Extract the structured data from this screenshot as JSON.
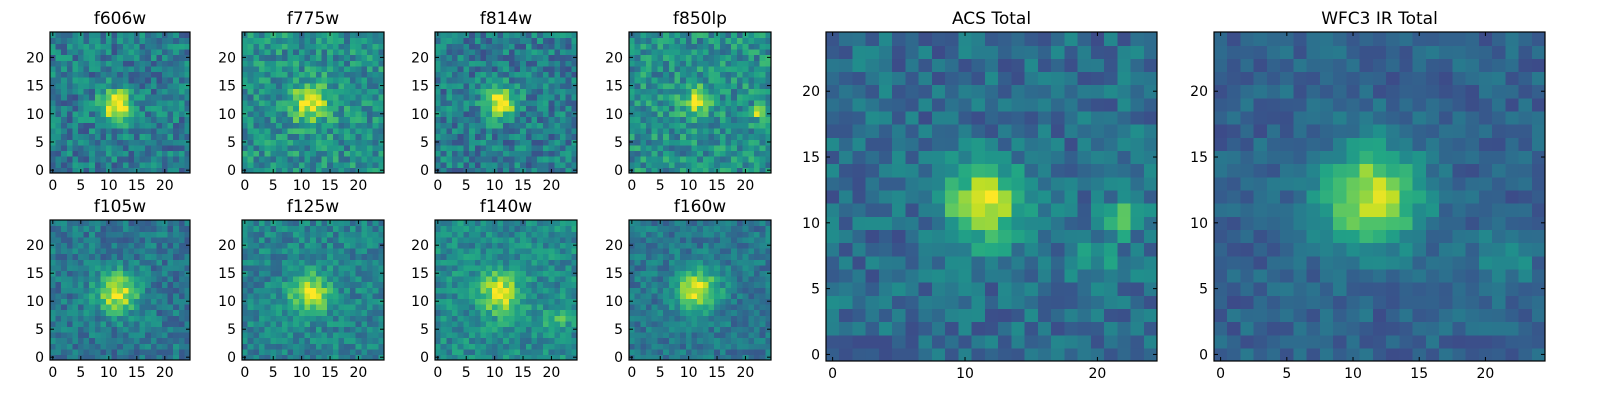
{
  "chart_data": [
    {
      "type": "heatmap",
      "title": "f606w",
      "grid": false,
      "colormap": "viridis",
      "xlim": [
        -0.5,
        24.5
      ],
      "ylim": [
        -0.5,
        24.5
      ],
      "xticks": [
        0,
        5,
        10,
        15,
        20
      ],
      "yticks": [
        0,
        5,
        10,
        15,
        20
      ],
      "source": {
        "cx": 11.5,
        "cy": 11.5,
        "sigma": 2.0,
        "amp": 0.62
      },
      "blobs": [],
      "noise": 0.18,
      "base": 0.42,
      "seed": 11
    },
    {
      "type": "heatmap",
      "title": "f775w",
      "grid": false,
      "colormap": "viridis",
      "xlim": [
        -0.5,
        24.5
      ],
      "ylim": [
        -0.5,
        24.5
      ],
      "xticks": [
        0,
        5,
        10,
        15,
        20
      ],
      "yticks": [
        0,
        5,
        10,
        15,
        20
      ],
      "source": {
        "cx": 11.5,
        "cy": 12.0,
        "sigma": 2.3,
        "amp": 0.5
      },
      "blobs": [],
      "noise": 0.18,
      "base": 0.5,
      "seed": 23
    },
    {
      "type": "heatmap",
      "title": "f814w",
      "grid": false,
      "colormap": "viridis",
      "xlim": [
        -0.5,
        24.5
      ],
      "ylim": [
        -0.5,
        24.5
      ],
      "xticks": [
        0,
        5,
        10,
        15,
        20
      ],
      "yticks": [
        0,
        5,
        10,
        15,
        20
      ],
      "source": {
        "cx": 11.0,
        "cy": 12.0,
        "sigma": 1.9,
        "amp": 0.62
      },
      "blobs": [],
      "noise": 0.18,
      "base": 0.42,
      "seed": 37
    },
    {
      "type": "heatmap",
      "title": "f850lp",
      "grid": false,
      "colormap": "viridis",
      "xlim": [
        -0.5,
        24.5
      ],
      "ylim": [
        -0.5,
        24.5
      ],
      "xticks": [
        0,
        5,
        10,
        15,
        20
      ],
      "yticks": [
        0,
        5,
        10,
        15,
        20
      ],
      "source": {
        "cx": 11.5,
        "cy": 12.5,
        "sigma": 1.8,
        "amp": 0.42
      },
      "blobs": [
        {
          "cx": 22.5,
          "cy": 10.5,
          "sigma": 0.8,
          "amp": 0.6
        }
      ],
      "noise": 0.18,
      "base": 0.5,
      "seed": 41
    },
    {
      "type": "heatmap",
      "title": "f105w",
      "grid": false,
      "colormap": "viridis",
      "xlim": [
        -0.5,
        24.5
      ],
      "ylim": [
        -0.5,
        24.5
      ],
      "xticks": [
        0,
        5,
        10,
        15,
        20
      ],
      "yticks": [
        0,
        5,
        10,
        15,
        20
      ],
      "source": {
        "cx": 11.5,
        "cy": 11.5,
        "sigma": 2.6,
        "amp": 0.55
      },
      "blobs": [],
      "noise": 0.14,
      "base": 0.4,
      "seed": 53
    },
    {
      "type": "heatmap",
      "title": "f125w",
      "grid": false,
      "colormap": "viridis",
      "xlim": [
        -0.5,
        24.5
      ],
      "ylim": [
        -0.5,
        24.5
      ],
      "xticks": [
        0,
        5,
        10,
        15,
        20
      ],
      "yticks": [
        0,
        5,
        10,
        15,
        20
      ],
      "source": {
        "cx": 11.5,
        "cy": 11.5,
        "sigma": 2.5,
        "amp": 0.5
      },
      "blobs": [],
      "noise": 0.14,
      "base": 0.45,
      "seed": 67
    },
    {
      "type": "heatmap",
      "title": "f140w",
      "grid": false,
      "colormap": "viridis",
      "xlim": [
        -0.5,
        24.5
      ],
      "ylim": [
        -0.5,
        24.5
      ],
      "xticks": [
        0,
        5,
        10,
        15,
        20
      ],
      "yticks": [
        0,
        5,
        10,
        15,
        20
      ],
      "source": {
        "cx": 11.0,
        "cy": 11.5,
        "sigma": 2.6,
        "amp": 0.48
      },
      "blobs": [
        {
          "cx": 21.0,
          "cy": 7.0,
          "sigma": 1.5,
          "amp": 0.25
        }
      ],
      "noise": 0.14,
      "base": 0.48,
      "seed": 71
    },
    {
      "type": "heatmap",
      "title": "f160w",
      "grid": false,
      "colormap": "viridis",
      "xlim": [
        -0.5,
        24.5
      ],
      "ylim": [
        -0.5,
        24.5
      ],
      "xticks": [
        0,
        5,
        10,
        15,
        20
      ],
      "yticks": [
        0,
        5,
        10,
        15,
        20
      ],
      "source": {
        "cx": 11.5,
        "cy": 12.0,
        "sigma": 2.6,
        "amp": 0.58
      },
      "blobs": [],
      "noise": 0.12,
      "base": 0.4,
      "seed": 83
    },
    {
      "type": "heatmap",
      "title": "ACS Total",
      "grid": false,
      "colormap": "viridis",
      "xlim": [
        -0.5,
        24.5
      ],
      "ylim": [
        -0.5,
        24.5
      ],
      "xticks": [
        0,
        10,
        20
      ],
      "yticks": [
        0,
        5,
        10,
        15,
        20
      ],
      "source": {
        "cx": 11.5,
        "cy": 11.5,
        "sigma": 2.0,
        "amp": 0.62
      },
      "blobs": [
        {
          "cx": 22.0,
          "cy": 10.5,
          "sigma": 0.9,
          "amp": 0.45
        },
        {
          "cx": 20.0,
          "cy": 7.0,
          "sigma": 1.3,
          "amp": 0.18
        }
      ],
      "noise": 0.13,
      "base": 0.36,
      "seed": 97
    },
    {
      "type": "heatmap",
      "title": "WFC3 IR Total",
      "grid": false,
      "colormap": "viridis",
      "xlim": [
        -0.5,
        24.5
      ],
      "ylim": [
        -0.5,
        24.5
      ],
      "xticks": [
        0,
        5,
        10,
        15,
        20
      ],
      "yticks": [
        0,
        5,
        10,
        15,
        20
      ],
      "source": {
        "cx": 11.5,
        "cy": 12.0,
        "sigma": 2.6,
        "amp": 0.62
      },
      "blobs": [
        {
          "cx": 21.5,
          "cy": 7.5,
          "sigma": 1.4,
          "amp": 0.22
        }
      ],
      "noise": 0.09,
      "base": 0.32,
      "seed": 101
    }
  ]
}
